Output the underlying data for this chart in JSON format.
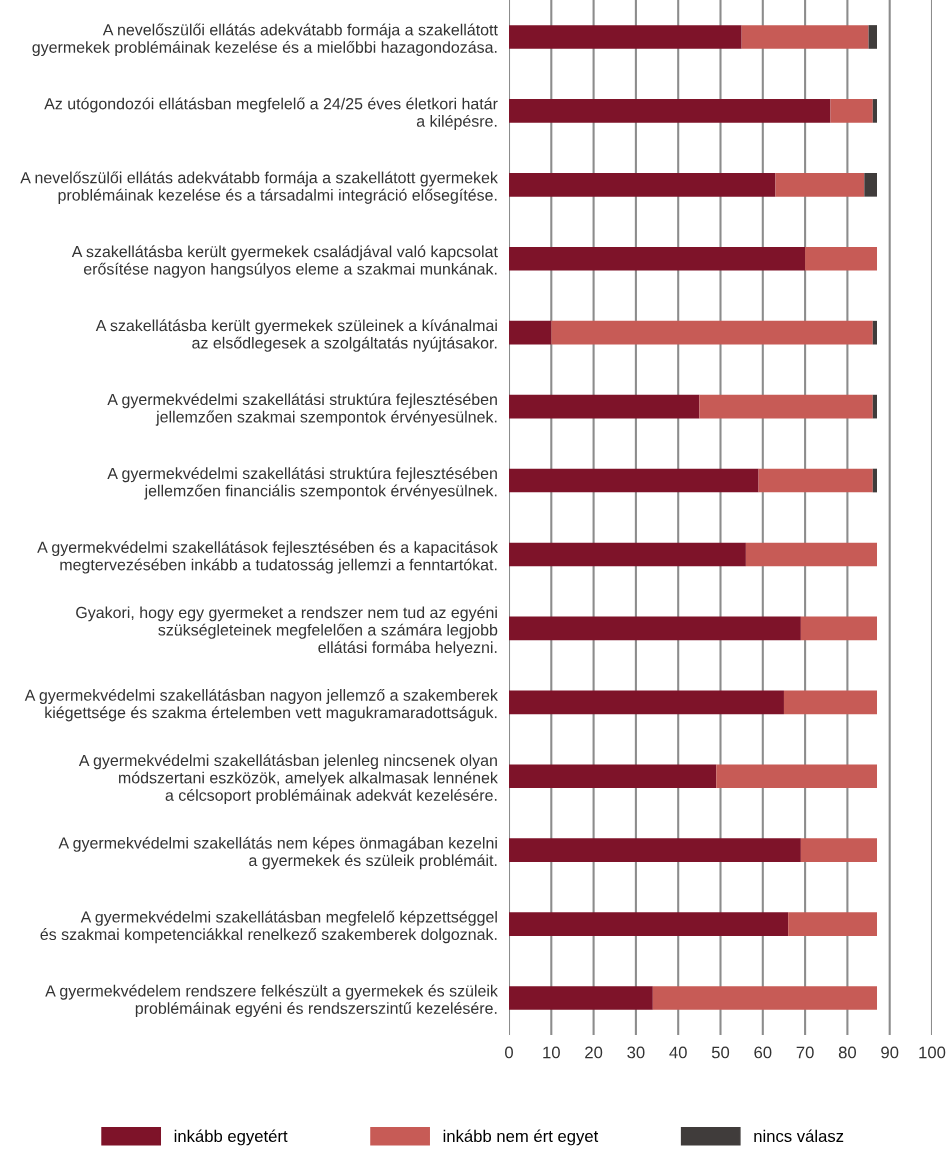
{
  "chart_data": {
    "type": "bar",
    "orientation": "horizontal",
    "stacked": true,
    "categories": [
      "A nevelőszülői ellátás adekvátabb formája a szakellátott\ngyermekek problémáinak kezelése és a mielőbbi hazagondozása.",
      "Az utógondozói ellátásban megfelelő a 24/25 éves életkori határ\na kilépésre.",
      "A nevelőszülői ellátás adekvátabb formája a szakellátott gyermekek\nproblémáinak kezelése és a társadalmi integráció elősegítése.",
      "A szakellátásba került gyermekek családjával való kapcsolat\nerősítése nagyon hangsúlyos eleme a szakmai munkának.",
      "A szakellátásba került gyermekek szüleinek a kívánalmai\naz elsődlegesek a szolgáltatás nyújtásakor.",
      "A gyermekvédelmi szakellátási struktúra fejlesztésében\njellemzően szakmai szempontok érvényesülnek.",
      "A gyermekvédelmi szakellátási struktúra fejlesztésében\njellemzően financiális szempontok érvényesülnek.",
      "A gyermekvédelmi szakellátások fejlesztésében és a kapacitások\nmegtervezésében inkább a tudatosság jellemzi a fenntartókat.",
      "Gyakori, hogy egy gyermeket a rendszer nem tud az egyéni\nszükségleteinek megfelelően a számára legjobb\nellátási formába helyezni.",
      "A gyermekvédelmi szakellátásban nagyon jellemző a szakemberek\nkiégettsége és szakma értelemben vett magukramaradottságuk.",
      "A gyermekvédelmi szakellátásban jelenleg nincsenek olyan\nmódszertani eszközök, amelyek alkalmasak lennének\na célcsoport problémáinak adekvát kezelésére.",
      "A gyermekvédelmi szakellátás nem képes önmagában kezelni\na gyermekek és szüleik problémáit.",
      "A gyermekvédelmi szakellátásban megfelelő képzettséggel\nés szakmai kompetenciákkal renelkező szakemberek dolgoznak.",
      "A gyermekvédelem rendszere felkészült a gyermekek és szüleik\nproblémáinak egyéni és rendszerszintű kezelésére."
    ],
    "series": [
      {
        "name": "inkább egyetért",
        "color": "#7e1329",
        "values": [
          55,
          76,
          63,
          70,
          10,
          45,
          59,
          56,
          69,
          65,
          49,
          69,
          66,
          34
        ]
      },
      {
        "name": "inkább nem ért egyet",
        "color": "#c75b56",
        "values": [
          30,
          10,
          21,
          17,
          76,
          41,
          27,
          31,
          18,
          22,
          38,
          18,
          21,
          53
        ]
      },
      {
        "name": "nincs válasz",
        "color": "#403c3b",
        "values": [
          2,
          1,
          3,
          null,
          1,
          1,
          1,
          null,
          null,
          null,
          null,
          null,
          null,
          null
        ]
      }
    ],
    "xlim": [
      0,
      100
    ],
    "xticks": [
      0,
      10,
      20,
      30,
      40,
      50,
      60,
      70,
      80,
      90,
      100
    ],
    "grid": "x",
    "legend": "bottom"
  }
}
